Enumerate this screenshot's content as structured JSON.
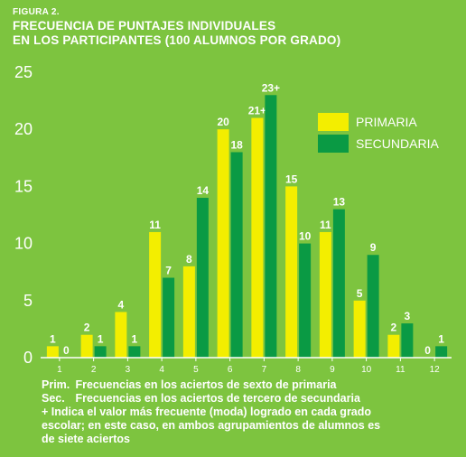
{
  "figure": {
    "label": "FIGURA 2.",
    "title_line1": "FRECUENCIA DE PUNTAJES INDIVIDUALES",
    "title_line2": "EN LOS PARTICIPANTES (100 ALUMNOS POR GRADO)"
  },
  "colors": {
    "background": "#7dc43f",
    "primaria": "#f3ee00",
    "secundaria": "#0a9a44",
    "text": "#ffffff"
  },
  "chart_data": {
    "type": "bar",
    "title": "FRECUENCIA DE PUNTAJES INDIVIDUALES EN LOS PARTICIPANTES (100 ALUMNOS POR GRADO)",
    "xlabel": "",
    "ylabel": "",
    "categories": [
      "1",
      "2",
      "3",
      "4",
      "5",
      "6",
      "7",
      "8",
      "9",
      "10",
      "11",
      "12"
    ],
    "ylim": [
      0,
      25
    ],
    "yticks": [
      "0",
      "5",
      "10",
      "15",
      "20",
      "25"
    ],
    "grid": false,
    "legend_position": "top-right",
    "series": [
      {
        "name": "PRIMARIA",
        "color": "#f3ee00",
        "values": [
          1,
          2,
          4,
          11,
          8,
          20,
          21,
          15,
          11,
          5,
          2,
          0
        ],
        "labels": [
          "1",
          "2",
          "4",
          "11",
          "8",
          "20",
          "21+",
          "15",
          "11",
          "5",
          "2",
          "0"
        ]
      },
      {
        "name": "SECUNDARIA",
        "color": "#0a9a44",
        "values": [
          0,
          1,
          1,
          7,
          14,
          18,
          23,
          10,
          13,
          9,
          3,
          1
        ],
        "labels": [
          "0",
          "1",
          "1",
          "7",
          "14",
          "18",
          "23+",
          "10",
          "13",
          "9",
          "3",
          "1"
        ]
      }
    ]
  },
  "notes": {
    "prim_abbr": "Prim.",
    "prim_text": "Frecuencias en los aciertos de sexto de primaria",
    "sec_abbr": "Sec.",
    "sec_text": "Frecuencias en los aciertos de tercero de secundaria",
    "moda_line1": "+ Indica el valor más frecuente (moda) logrado en cada grado",
    "moda_line2": "escolar; en este caso, en ambos agrupamientos de alumnos es",
    "moda_line3": "de siete aciertos"
  }
}
